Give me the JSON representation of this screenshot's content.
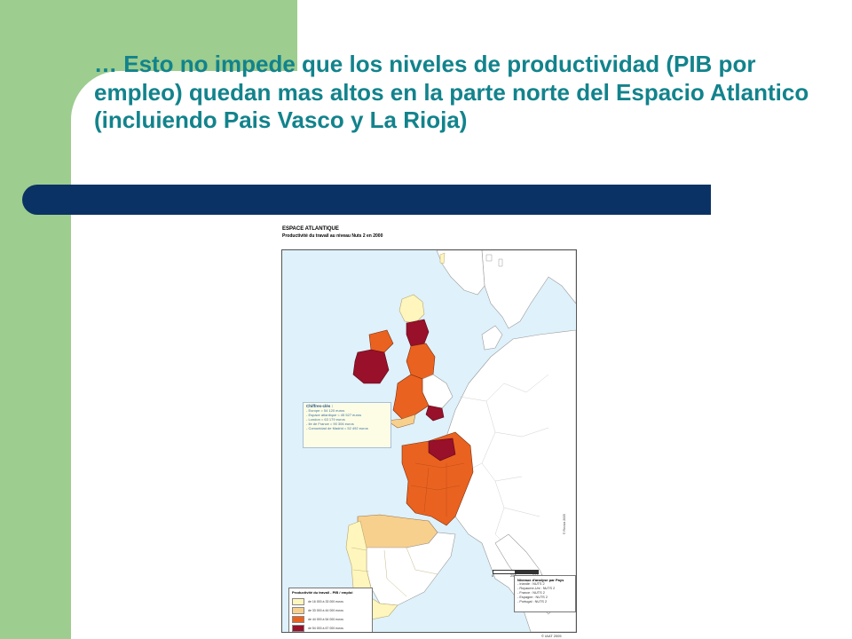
{
  "slide": {
    "title": "… Esto no impede que los niveles de productividad (PIB por empleo) quedan mas altos en la parte norte del Espacio Atlantico (incluiendo Pais Vasco y La Rioja)"
  },
  "map": {
    "heading": "ESPACE ATLANTIQUE",
    "subheading": "Productivité du travail au niveau Nuts 2 en 2000",
    "key_figures": {
      "title": "Chiffres-clés :",
      "lines": [
        "- Europe = 54 120 euros",
        "- Espace atlantique = 45 527 euros",
        "- London = 63 179 euros",
        "- Ile de France = 90 306 euros",
        "- Comunidad de Madrid = 52 492 euros"
      ]
    },
    "legend": {
      "title": "Productivité du travail - PIB / emploi",
      "classes": [
        {
          "label": "de 16 000 à 33 000 euros",
          "color": "#fff6bd"
        },
        {
          "label": "de 33 000 à 44 000 euros",
          "color": "#f8d08e"
        },
        {
          "label": "de 44 000 à 54 000 euros",
          "color": "#ea6220"
        },
        {
          "label": "de 54 000 à 67 000 euros",
          "color": "#98102a"
        }
      ]
    },
    "analysis_level": {
      "title": "Niveaux d'analyse par Pays",
      "lines": [
        "- Irlande : NUTS 2",
        "- Royaume-Uni : NUTS 2",
        "- France : NUTS 2",
        "- Espagne : NUTS 2",
        "- Portugal : NUTS 2"
      ]
    },
    "scale": {
      "ticks": [
        "0",
        "250",
        "500"
      ],
      "unit": "km"
    },
    "credit": "© Reclus 2005",
    "footer": "© IAAT 2005",
    "colors": {
      "sea": "#dff1fa",
      "land": "#ffffff",
      "border": "#9a9a9a"
    }
  }
}
